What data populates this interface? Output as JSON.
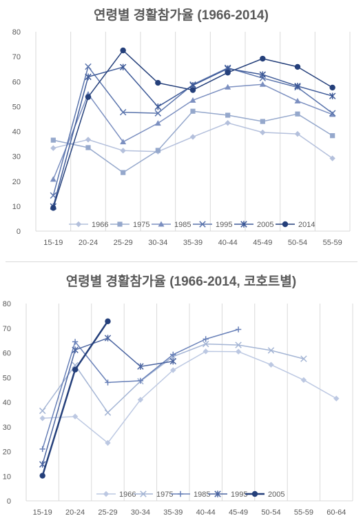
{
  "chart_data": [
    {
      "type": "line",
      "title": "연령별 경활참가율 (1966-2014)",
      "categories": [
        "15-19",
        "20-24",
        "25-29",
        "30-34",
        "35-39",
        "40-44",
        "45-49",
        "50-54",
        "55-59"
      ],
      "ylim": [
        0,
        80
      ],
      "yticks": [
        0,
        10,
        20,
        30,
        40,
        50,
        60,
        70,
        80
      ],
      "grid": "vertical",
      "legend": "bottom",
      "series": [
        {
          "name": "1966",
          "color": "#b4c0dc",
          "marker": "diamond",
          "width": 1.5,
          "values": [
            33.3,
            36.7,
            32.3,
            31.9,
            37.8,
            43.4,
            39.6,
            39.0,
            29.2
          ]
        },
        {
          "name": "1975",
          "color": "#95a8cc",
          "marker": "square",
          "width": 1.5,
          "values": [
            36.5,
            33.5,
            23.5,
            32.4,
            48.1,
            46.5,
            44.0,
            47.0,
            38.3
          ]
        },
        {
          "name": "1985",
          "color": "#7b8fc0",
          "marker": "triangle",
          "width": 1.5,
          "values": [
            20.8,
            55.0,
            35.8,
            43.3,
            52.5,
            57.8,
            58.9,
            52.2,
            46.8
          ]
        },
        {
          "name": "1995",
          "color": "#5a74ac",
          "marker": "x",
          "width": 1.5,
          "values": [
            14.3,
            66.0,
            47.7,
            47.3,
            58.8,
            65.5,
            61.4,
            57.7,
            47.3
          ]
        },
        {
          "name": "2005",
          "color": "#3d5997",
          "marker": "asterisk",
          "width": 1.5,
          "values": [
            9.9,
            61.9,
            65.8,
            49.9,
            58.5,
            65.2,
            62.8,
            58.2,
            54.2
          ]
        },
        {
          "name": "2014",
          "color": "#243f7a",
          "marker": "circle",
          "width": 1.5,
          "values": [
            9.3,
            53.8,
            72.5,
            59.5,
            56.6,
            63.6,
            69.2,
            65.9,
            57.6
          ]
        }
      ]
    },
    {
      "type": "line",
      "title": "연령별 경활참가율 (1966-2014, 코호트별)",
      "categories": [
        "15-19",
        "20-24",
        "25-29",
        "30-34",
        "35-39",
        "40-44",
        "45-49",
        "50-54",
        "55-59",
        "60-64"
      ],
      "ylim": [
        0,
        80
      ],
      "yticks": [
        0,
        10,
        20,
        30,
        40,
        50,
        60,
        70,
        80
      ],
      "grid": "vertical",
      "legend": "bottom",
      "series": [
        {
          "name": "1966",
          "color": "#bcc8e2",
          "marker": "diamond",
          "width": 1.5,
          "values": [
            33.5,
            34.2,
            23.5,
            41.0,
            53.0,
            60.6,
            60.5,
            55.2,
            49.0,
            41.5
          ]
        },
        {
          "name": "1975",
          "color": "#a3b4d4",
          "marker": "x",
          "width": 1.5,
          "values": [
            36.5,
            55.0,
            35.8,
            48.5,
            58.5,
            63.6,
            63.2,
            61.0,
            57.6,
            null
          ]
        },
        {
          "name": "1985",
          "color": "#6880b8",
          "marker": "plus",
          "width": 1.5,
          "values": [
            21.0,
            64.5,
            48.0,
            48.7,
            59.3,
            65.6,
            69.5,
            null,
            null,
            null
          ]
        },
        {
          "name": "1995",
          "color": "#4a64a0",
          "marker": "asterisk",
          "width": 1.5,
          "values": [
            14.8,
            61.2,
            66.0,
            54.5,
            56.6,
            null,
            null,
            null,
            null,
            null
          ]
        },
        {
          "name": "2005",
          "color": "#243f7a",
          "marker": "circle",
          "width": 2.5,
          "values": [
            10.2,
            53.2,
            72.8,
            null,
            null,
            null,
            null,
            null,
            null,
            null
          ]
        }
      ]
    }
  ]
}
